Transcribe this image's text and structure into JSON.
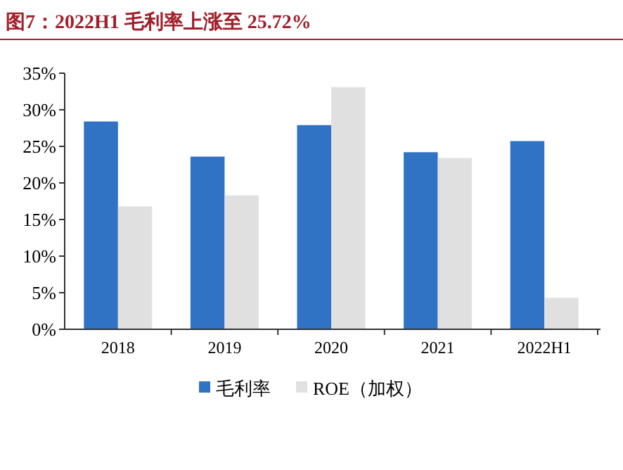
{
  "chart_data": {
    "type": "bar",
    "title": "图7：2022H1 毛利率上涨至 25.72%",
    "categories": [
      "2018",
      "2019",
      "2020",
      "2021",
      "2022H1"
    ],
    "series": [
      {
        "name": "毛利率",
        "color": "#3072c4",
        "values": [
          28.4,
          23.6,
          27.9,
          24.2,
          25.72
        ]
      },
      {
        "name": "ROE（加权）",
        "color": "#e0e0e0",
        "values": [
          16.8,
          18.3,
          33.1,
          23.4,
          4.3
        ]
      }
    ],
    "ylim": [
      0,
      35
    ],
    "yticks": [
      {
        "value": 0,
        "label": "0%"
      },
      {
        "value": 5,
        "label": "5%"
      },
      {
        "value": 10,
        "label": "10%"
      },
      {
        "value": 15,
        "label": "15%"
      },
      {
        "value": 20,
        "label": "20%"
      },
      {
        "value": 25,
        "label": "25%"
      },
      {
        "value": 30,
        "label": "30%"
      },
      {
        "value": 35,
        "label": "35%"
      }
    ],
    "legend": "bottom"
  }
}
